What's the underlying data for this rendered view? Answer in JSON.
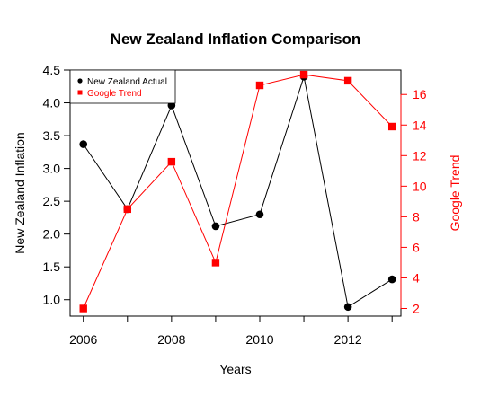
{
  "chart_data": {
    "type": "line",
    "title": "New Zealand Inflation Comparison",
    "xlabel": "Years",
    "ylabel_left": "New Zealand Inflation",
    "ylabel_right": "Google Trend",
    "x": [
      2006,
      2007,
      2008,
      2009,
      2010,
      2011,
      2012,
      2013
    ],
    "x_ticks": [
      "2006",
      "2008",
      "2010",
      "2012"
    ],
    "xlim": [
      2005.7,
      2013.2
    ],
    "ylim_left": [
      0.75,
      4.5
    ],
    "ylim_right": [
      1.5,
      17.6
    ],
    "y_ticks_left": [
      "1.0",
      "1.5",
      "2.0",
      "2.5",
      "3.0",
      "3.5",
      "4.0",
      "4.5"
    ],
    "y_ticks_right": [
      "2",
      "4",
      "6",
      "8",
      "10",
      "12",
      "14",
      "16"
    ],
    "series": [
      {
        "name": "New Zealand Actual",
        "axis": "left",
        "color": "#000000",
        "marker": "circle",
        "values": [
          3.37,
          2.38,
          3.96,
          2.12,
          2.3,
          4.4,
          0.89,
          1.31
        ]
      },
      {
        "name": "Google Trend",
        "axis": "right",
        "color": "#ff0000",
        "marker": "square",
        "values": [
          2.0,
          8.5,
          11.6,
          5.0,
          16.6,
          17.3,
          16.9,
          13.9
        ]
      }
    ],
    "legend_position": "top-left",
    "grid": false
  }
}
